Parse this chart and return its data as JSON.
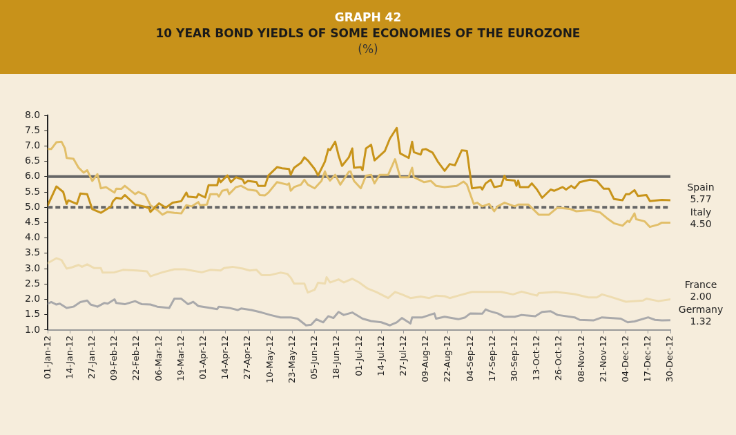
{
  "chart_data": {
    "type": "line",
    "title": "GRAPH 42",
    "subtitle": "10 YEAR BOND YIEDLS OF SOME ECONOMIES OF THE EUROZONE",
    "ylabel": "(%)",
    "xlim": [
      "--01-01",
      "--12-30"
    ],
    "xticks": [
      {
        "value": "--01-01",
        "label": "01-Jan-12"
      },
      {
        "value": "--01-14",
        "label": "14-Jan-12"
      },
      {
        "value": "--01-27",
        "label": "27-Jan-12"
      },
      {
        "value": "--02-09",
        "label": "09-Feb-12"
      },
      {
        "value": "--02-22",
        "label": "22-Feb-12"
      },
      {
        "value": "--03-06",
        "label": "06-Mar-12"
      },
      {
        "value": "--03-19",
        "label": "19-Mar-12"
      },
      {
        "value": "--04-01",
        "label": "01-Apr-12"
      },
      {
        "value": "--04-14",
        "label": "14-Apr-12"
      },
      {
        "value": "--04-27",
        "label": "27-Apr-12"
      },
      {
        "value": "--05-10",
        "label": "10-May-12"
      },
      {
        "value": "--05-23",
        "label": "23-May-12"
      },
      {
        "value": "--06-05",
        "label": "05-Jun-12"
      },
      {
        "value": "--06-18",
        "label": "18-Jun-12"
      },
      {
        "value": "--07-01",
        "label": "01-Jul-12"
      },
      {
        "value": "--07-14",
        "label": "14-Jul-12"
      },
      {
        "value": "--07-27",
        "label": "27-Jul-12"
      },
      {
        "value": "--08-09",
        "label": "09-Aug-12"
      },
      {
        "value": "--08-22",
        "label": "22-Aug-12"
      },
      {
        "value": "--09-04",
        "label": "04-Sep-12"
      },
      {
        "value": "--09-17",
        "label": "17-Sep-12"
      },
      {
        "value": "--09-30",
        "label": "30-Sep-12"
      },
      {
        "value": "--10-13",
        "label": "13-Oct-12"
      },
      {
        "value": "--10-26",
        "label": "26-Oct-12"
      },
      {
        "value": "--11-08",
        "label": "08-Nov-12"
      },
      {
        "value": "--11-21",
        "label": "21-Nov-12"
      },
      {
        "value": "--12-04",
        "label": "04-Dec-12"
      },
      {
        "value": "--12-17",
        "label": "17-Dec-12"
      },
      {
        "value": "--12-30",
        "label": "30-Dec-12"
      }
    ],
    "ylim": [
      1,
      8
    ],
    "yticks": [
      {
        "value": 1,
        "label": "1.0"
      },
      {
        "value": 1.5,
        "label": "1.5"
      },
      {
        "value": 2,
        "label": "2.0"
      },
      {
        "value": 2.5,
        "label": "2.5"
      },
      {
        "value": 3,
        "label": "3.0"
      },
      {
        "value": 3.5,
        "label": "3.5"
      },
      {
        "value": 4,
        "label": "4.0"
      },
      {
        "value": 4.5,
        "label": "4.5"
      },
      {
        "value": 5,
        "label": "5.0"
      },
      {
        "value": 5.5,
        "label": "5.5"
      },
      {
        "value": 6,
        "label": "6.0"
      },
      {
        "value": 6.5,
        "label": "6.5"
      },
      {
        "value": 7,
        "label": "7.0"
      },
      {
        "value": 7.5,
        "label": "7.5"
      },
      {
        "value": 8,
        "label": "8.0"
      }
    ],
    "grid": false,
    "marker": "none",
    "line_style": "solid",
    "ref_lines": [
      {
        "axis": "y",
        "value": 6,
        "color": "#666666",
        "line_style": "solid"
      },
      {
        "axis": "y",
        "value": 5,
        "color": "#666666",
        "line_style": "dashed"
      }
    ],
    "annotations": [
      "5.77",
      "4.50",
      "2.00",
      "1.32"
    ],
    "series": [
      {
        "name": "Spain",
        "color": "#c8941a",
        "x": [
          "--01-01",
          "--01-06",
          "--01-10",
          "--01-12",
          "--01-13",
          "--01-18",
          "--01-20",
          "--01-24",
          "--01-27",
          "--02-01",
          "--02-07",
          "--02-08",
          "--02-10",
          "--02-13",
          "--02-15",
          "--02-21",
          "--02-29",
          "--03-01",
          "--03-06",
          "--03-10",
          "--03-14",
          "--03-19",
          "--03-22",
          "--03-23",
          "--03-28",
          "--03-29",
          "--04-02",
          "--04-04",
          "--04-09",
          "--04-10",
          "--04-11",
          "--04-15",
          "--04-17",
          "--04-20",
          "--04-24",
          "--04-25",
          "--04-27",
          "--05-02",
          "--05-03",
          "--05-07",
          "--05-09",
          "--05-14",
          "--05-17",
          "--05-21",
          "--05-22",
          "--05-24",
          "--05-28",
          "--05-30",
          "--06-01",
          "--06-05",
          "--06-07",
          "--06-11",
          "--06-13",
          "--06-14",
          "--06-17",
          "--06-19",
          "--06-21",
          "--06-25",
          "--06-27",
          "--06-28",
          "--07-02",
          "--07-03",
          "--07-05",
          "--07-08",
          "--07-10",
          "--07-16",
          "--07-19",
          "--07-23",
          "--07-25",
          "--07-30",
          "--08-01",
          "--08-02",
          "--08-06",
          "--08-07",
          "--08-09",
          "--08-13",
          "--08-16",
          "--08-20",
          "--08-23",
          "--08-26",
          "--08-27",
          "--08-30",
          "--09-02",
          "--09-05",
          "--09-10",
          "--09-11",
          "--09-13",
          "--09-16",
          "--09-18",
          "--09-22",
          "--09-24",
          "--09-25",
          "--09-30",
          "--10-01",
          "--10-02",
          "--10-03",
          "--10-08",
          "--10-10",
          "--10-13",
          "--10-16",
          "--10-21",
          "--10-23",
          "--10-28",
          "--10-30",
          "--11-02",
          "--11-04",
          "--11-07",
          "--11-13",
          "--11-17",
          "--11-21",
          "--11-24",
          "--11-27",
          "--12-02",
          "--12-04",
          "--12-06",
          "--12-09",
          "--12-11",
          "--12-16",
          "--12-18",
          "--12-25",
          "--12-30"
        ],
        "values": [
          5.07,
          5.68,
          5.5,
          5.11,
          5.23,
          5.11,
          5.45,
          5.43,
          4.94,
          4.82,
          5.03,
          5.19,
          5.31,
          5.28,
          5.4,
          5.09,
          4.99,
          4.85,
          5.13,
          4.99,
          5.15,
          5.2,
          5.48,
          5.35,
          5.32,
          5.43,
          5.32,
          5.72,
          5.72,
          5.94,
          5.82,
          6.04,
          5.82,
          5.98,
          5.9,
          5.78,
          5.86,
          5.82,
          5.7,
          5.7,
          6.04,
          6.31,
          6.27,
          6.25,
          6.06,
          6.29,
          6.45,
          6.63,
          6.53,
          6.25,
          6.04,
          6.49,
          6.9,
          6.86,
          7.14,
          6.69,
          6.35,
          6.63,
          6.92,
          6.29,
          6.31,
          6.21,
          6.92,
          7.04,
          6.53,
          6.83,
          7.24,
          7.59,
          6.76,
          6.61,
          7.14,
          6.8,
          6.72,
          6.88,
          6.9,
          6.78,
          6.49,
          6.19,
          6.41,
          6.37,
          6.49,
          6.86,
          6.84,
          5.62,
          5.66,
          5.58,
          5.78,
          5.9,
          5.66,
          5.7,
          6.03,
          5.9,
          5.87,
          5.7,
          5.87,
          5.66,
          5.66,
          5.78,
          5.58,
          5.31,
          5.58,
          5.54,
          5.66,
          5.58,
          5.7,
          5.62,
          5.82,
          5.9,
          5.86,
          5.61,
          5.61,
          5.27,
          5.23,
          5.43,
          5.43,
          5.56,
          5.37,
          5.4,
          5.2,
          5.24,
          5.23
        ]
      },
      {
        "name": "Italy",
        "color": "#e2bf6a",
        "x": [
          "--01-01",
          "--01-03",
          "--01-06",
          "--01-09",
          "--01-11",
          "--01-12",
          "--01-16",
          "--01-19",
          "--01-22",
          "--01-24",
          "--01-27",
          "--01-30",
          "--02-01",
          "--02-04",
          "--02-09",
          "--02-10",
          "--02-13",
          "--02-15",
          "--02-21",
          "--02-23",
          "--02-27",
          "--03-01",
          "--03-05",
          "--03-08",
          "--03-11",
          "--03-15",
          "--03-19",
          "--03-22",
          "--03-25",
          "--03-29",
          "--03-30",
          "--04-03",
          "--04-05",
          "--04-09",
          "--04-10",
          "--04-12",
          "--04-15",
          "--04-16",
          "--04-20",
          "--04-23",
          "--04-27",
          "--05-02",
          "--05-04",
          "--05-07",
          "--05-09",
          "--05-14",
          "--05-20",
          "--05-21",
          "--05-22",
          "--05-24",
          "--05-28",
          "--05-30",
          "--06-01",
          "--06-05",
          "--06-09",
          "--06-11",
          "--06-12",
          "--06-14",
          "--06-17",
          "--06-20",
          "--06-25",
          "--06-26",
          "--06-28",
          "--07-02",
          "--07-05",
          "--07-08",
          "--07-10",
          "--07-13",
          "--07-18",
          "--07-22",
          "--07-25",
          "--07-30",
          "--08-01",
          "--08-02",
          "--08-08",
          "--08-12",
          "--08-15",
          "--08-20",
          "--08-27",
          "--08-31",
          "--09-02",
          "--09-06",
          "--09-08",
          "--09-11",
          "--09-15",
          "--09-18",
          "--09-20",
          "--09-24",
          "--09-30",
          "--10-02",
          "--10-08",
          "--10-14",
          "--10-20",
          "--10-25",
          "--11-01",
          "--11-05",
          "--11-13",
          "--11-19",
          "--11-23",
          "--11-27",
          "--12-02",
          "--12-05",
          "--12-06",
          "--12-09",
          "--12-10",
          "--12-15",
          "--12-18",
          "--12-23",
          "--12-25",
          "--12-30"
        ],
        "values": [
          6.9,
          6.9,
          7.12,
          7.14,
          6.92,
          6.61,
          6.58,
          6.29,
          6.13,
          6.21,
          5.86,
          6.08,
          5.62,
          5.66,
          5.48,
          5.61,
          5.6,
          5.7,
          5.43,
          5.5,
          5.4,
          5.07,
          4.91,
          4.76,
          4.85,
          4.82,
          4.8,
          5.07,
          5.03,
          5.17,
          5.07,
          5.09,
          5.43,
          5.43,
          5.35,
          5.54,
          5.58,
          5.43,
          5.66,
          5.7,
          5.58,
          5.54,
          5.4,
          5.39,
          5.48,
          5.82,
          5.74,
          5.78,
          5.54,
          5.66,
          5.74,
          5.9,
          5.74,
          5.62,
          5.86,
          6.17,
          6.03,
          5.87,
          6.06,
          5.74,
          6.16,
          6.17,
          5.86,
          5.62,
          6.03,
          6.06,
          5.78,
          6.06,
          6.06,
          6.57,
          5.98,
          5.98,
          6.29,
          5.98,
          5.82,
          5.86,
          5.7,
          5.66,
          5.7,
          5.84,
          5.74,
          5.11,
          5.15,
          5.03,
          5.11,
          4.87,
          5.03,
          5.15,
          5.03,
          5.09,
          5.09,
          4.76,
          4.76,
          4.99,
          4.95,
          4.87,
          4.91,
          4.83,
          4.64,
          4.48,
          4.4,
          4.56,
          4.52,
          4.8,
          4.61,
          4.54,
          4.36,
          4.44,
          4.5,
          4.5
        ]
      },
      {
        "name": "France",
        "color": "#eedcb0",
        "x": [
          "--01-01",
          "--01-06",
          "--01-09",
          "--01-12",
          "--01-15",
          "--01-19",
          "--01-21",
          "--01-24",
          "--01-28",
          "--02-01",
          "--02-02",
          "--02-09",
          "--02-14",
          "--02-22",
          "--02-28",
          "--03-01",
          "--03-08",
          "--03-15",
          "--03-21",
          "--03-31",
          "--04-05",
          "--04-11",
          "--04-13",
          "--04-18",
          "--04-24",
          "--04-28",
          "--05-02",
          "--05-05",
          "--05-10",
          "--05-16",
          "--05-20",
          "--05-22",
          "--05-24",
          "--05-30",
          "--06-01",
          "--06-05",
          "--06-07",
          "--06-11",
          "--06-12",
          "--06-14",
          "--06-19",
          "--06-22",
          "--06-27",
          "--07-01",
          "--07-06",
          "--07-11",
          "--07-18",
          "--07-22",
          "--07-26",
          "--07-31",
          "--08-06",
          "--08-11",
          "--08-15",
          "--08-20",
          "--08-23",
          "--08-28",
          "--09-05",
          "--09-12",
          "--09-22",
          "--09-29",
          "--10-04",
          "--10-13",
          "--10-14",
          "--10-24",
          "--11-04",
          "--11-12",
          "--11-17",
          "--11-20",
          "--11-25",
          "--12-04",
          "--12-14",
          "--12-16",
          "--12-23",
          "--12-30"
        ],
        "values": [
          3.18,
          3.34,
          3.28,
          3.0,
          3.04,
          3.12,
          3.06,
          3.14,
          3.02,
          3.02,
          2.87,
          2.88,
          2.96,
          2.94,
          2.91,
          2.75,
          2.88,
          2.98,
          2.98,
          2.88,
          2.96,
          2.94,
          3.02,
          3.06,
          3.0,
          2.94,
          2.96,
          2.79,
          2.79,
          2.87,
          2.83,
          2.71,
          2.51,
          2.51,
          2.22,
          2.31,
          2.54,
          2.51,
          2.72,
          2.55,
          2.65,
          2.55,
          2.67,
          2.55,
          2.35,
          2.24,
          2.04,
          2.24,
          2.16,
          2.04,
          2.09,
          2.04,
          2.12,
          2.1,
          2.04,
          2.12,
          2.24,
          2.24,
          2.24,
          2.16,
          2.25,
          2.12,
          2.2,
          2.24,
          2.17,
          2.06,
          2.06,
          2.16,
          2.08,
          1.92,
          1.96,
          2.02,
          1.94,
          2.0
        ]
      },
      {
        "name": "Germany",
        "color": "#a9a9ab",
        "x": [
          "--01-01",
          "--01-03",
          "--01-06",
          "--01-08",
          "--01-12",
          "--01-16",
          "--01-20",
          "--01-24",
          "--01-26",
          "--01-30",
          "--02-03",
          "--02-05",
          "--02-09",
          "--02-10",
          "--02-15",
          "--02-21",
          "--02-25",
          "--03-01",
          "--03-05",
          "--03-12",
          "--03-15",
          "--03-19",
          "--03-23",
          "--03-26",
          "--03-29",
          "--04-05",
          "--04-09",
          "--04-10",
          "--04-16",
          "--04-21",
          "--04-23",
          "--04-29",
          "--05-05",
          "--05-10",
          "--05-16",
          "--05-22",
          "--05-26",
          "--05-31",
          "--06-03",
          "--06-06",
          "--06-10",
          "--06-13",
          "--06-16",
          "--06-19",
          "--06-22",
          "--06-27",
          "--07-03",
          "--07-08",
          "--07-14",
          "--07-19",
          "--07-23",
          "--07-26",
          "--07-31",
          "--08-01",
          "--08-07",
          "--08-14",
          "--08-15",
          "--08-20",
          "--08-28",
          "--09-01",
          "--09-04",
          "--09-11",
          "--09-13",
          "--09-15",
          "--09-20",
          "--09-24",
          "--09-30",
          "--10-04",
          "--10-12",
          "--10-16",
          "--10-21",
          "--10-25",
          "--11-04",
          "--11-07",
          "--11-15",
          "--11-20",
          "--12-01",
          "--12-05",
          "--12-09",
          "--12-17",
          "--12-21",
          "--12-25",
          "--12-30"
        ],
        "values": [
          1.86,
          1.91,
          1.83,
          1.86,
          1.72,
          1.76,
          1.91,
          1.96,
          1.83,
          1.76,
          1.88,
          1.86,
          2.0,
          1.88,
          1.84,
          1.94,
          1.84,
          1.83,
          1.76,
          1.72,
          2.02,
          2.02,
          1.84,
          1.92,
          1.78,
          1.72,
          1.68,
          1.76,
          1.72,
          1.65,
          1.7,
          1.65,
          1.57,
          1.49,
          1.41,
          1.41,
          1.37,
          1.15,
          1.17,
          1.35,
          1.25,
          1.45,
          1.39,
          1.59,
          1.49,
          1.57,
          1.37,
          1.29,
          1.25,
          1.15,
          1.25,
          1.39,
          1.21,
          1.41,
          1.41,
          1.54,
          1.37,
          1.43,
          1.35,
          1.41,
          1.54,
          1.53,
          1.67,
          1.62,
          1.54,
          1.43,
          1.43,
          1.49,
          1.45,
          1.59,
          1.61,
          1.49,
          1.41,
          1.33,
          1.31,
          1.41,
          1.37,
          1.25,
          1.28,
          1.41,
          1.33,
          1.31,
          1.32
        ]
      }
    ]
  }
}
